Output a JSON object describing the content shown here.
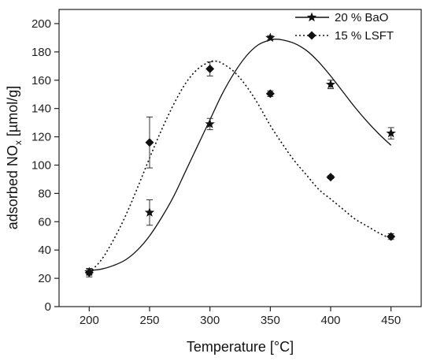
{
  "chart_data": {
    "type": "scatter",
    "xlabel": "Temperature [°C]",
    "ylabel_parts": {
      "before": "adsorbed NO",
      "sub": "x",
      "after": " [µmol/g]"
    },
    "xlim": [
      175,
      475
    ],
    "ylim": [
      0,
      210
    ],
    "xticks": [
      200,
      250,
      300,
      350,
      400,
      450
    ],
    "yticks": [
      0,
      20,
      40,
      60,
      80,
      100,
      120,
      140,
      160,
      180,
      200
    ],
    "grid": false,
    "legend_position": "top-right",
    "series": [
      {
        "name": "20 % BaO",
        "marker": "star",
        "line_style": "solid",
        "points": [
          {
            "x": 200,
            "y": 24.5,
            "err": 2
          },
          {
            "x": 250,
            "y": 66.5,
            "err": 9
          },
          {
            "x": 300,
            "y": 129,
            "err": 4
          },
          {
            "x": 350,
            "y": 190,
            "err": 1.5
          },
          {
            "x": 400,
            "y": 157,
            "err": 3
          },
          {
            "x": 450,
            "y": 122.5,
            "err": 4
          }
        ],
        "fit": [
          [
            200,
            25.5
          ],
          [
            210,
            26.5
          ],
          [
            220,
            29
          ],
          [
            230,
            33
          ],
          [
            240,
            40
          ],
          [
            250,
            50
          ],
          [
            260,
            63
          ],
          [
            270,
            78
          ],
          [
            280,
            96
          ],
          [
            290,
            114
          ],
          [
            300,
            132
          ],
          [
            310,
            150
          ],
          [
            320,
            165
          ],
          [
            330,
            177
          ],
          [
            340,
            185
          ],
          [
            350,
            188.5
          ],
          [
            355,
            189
          ],
          [
            360,
            188.5
          ],
          [
            370,
            186
          ],
          [
            380,
            181
          ],
          [
            390,
            173
          ],
          [
            400,
            163
          ],
          [
            410,
            152
          ],
          [
            420,
            141
          ],
          [
            430,
            131
          ],
          [
            440,
            122
          ],
          [
            450,
            114
          ]
        ]
      },
      {
        "name": "15 % LSFT",
        "marker": "diamond",
        "line_style": "dotted",
        "points": [
          {
            "x": 200,
            "y": 24,
            "err": 3
          },
          {
            "x": 250,
            "y": 116,
            "err": 18
          },
          {
            "x": 300,
            "y": 168,
            "err": 5
          },
          {
            "x": 350,
            "y": 150.5,
            "err": 2
          },
          {
            "x": 400,
            "y": 91.5,
            "err": 1
          },
          {
            "x": 450,
            "y": 49.5,
            "err": 2
          }
        ],
        "fit": [
          [
            200,
            24
          ],
          [
            210,
            33
          ],
          [
            220,
            47
          ],
          [
            230,
            64
          ],
          [
            240,
            84
          ],
          [
            250,
            105
          ],
          [
            260,
            125
          ],
          [
            270,
            143
          ],
          [
            280,
            158
          ],
          [
            290,
            168
          ],
          [
            300,
            173
          ],
          [
            305,
            173.5
          ],
          [
            310,
            172
          ],
          [
            320,
            166
          ],
          [
            330,
            156
          ],
          [
            340,
            143
          ],
          [
            350,
            128
          ],
          [
            360,
            115
          ],
          [
            370,
            103
          ],
          [
            380,
            93
          ],
          [
            390,
            83
          ],
          [
            400,
            76
          ],
          [
            410,
            69
          ],
          [
            420,
            62
          ],
          [
            430,
            57
          ],
          [
            440,
            52
          ],
          [
            450,
            48
          ]
        ]
      }
    ]
  }
}
